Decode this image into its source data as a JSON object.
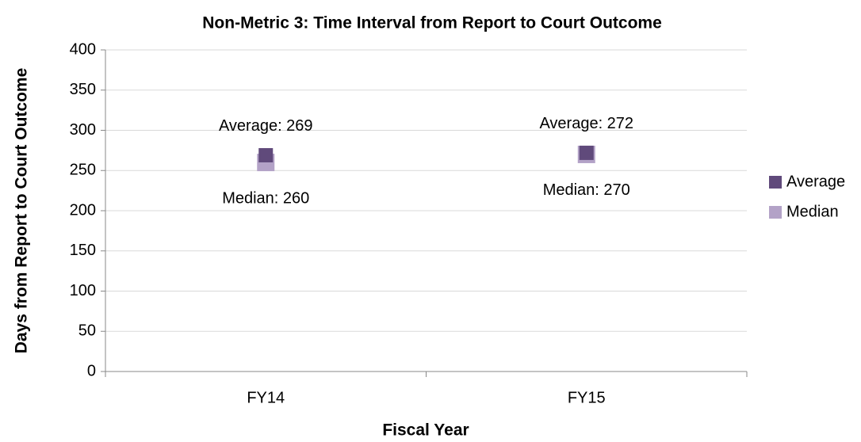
{
  "chart_data": {
    "type": "scatter",
    "title": "Non-Metric 3: Time Interval from Report to Court Outcome",
    "xlabel": "Fiscal Year",
    "ylabel": "Days from Report to Court Outcome",
    "categories": [
      "FY14",
      "FY15"
    ],
    "series": [
      {
        "name": "Average",
        "color": "#604a7b",
        "marker": "square",
        "values": [
          269,
          272
        ],
        "value_labels": [
          "Average: 269",
          "Average: 272"
        ],
        "label_position": "above"
      },
      {
        "name": "Median",
        "color": "#b3a2c7",
        "marker": "square",
        "values": [
          260,
          270
        ],
        "value_labels": [
          "Median: 260",
          "Median: 270"
        ],
        "label_position": "below"
      }
    ],
    "ylim": [
      0,
      400
    ],
    "yticks": [
      0,
      50,
      100,
      150,
      200,
      250,
      300,
      350,
      400
    ],
    "grid": true,
    "legend": "right"
  }
}
